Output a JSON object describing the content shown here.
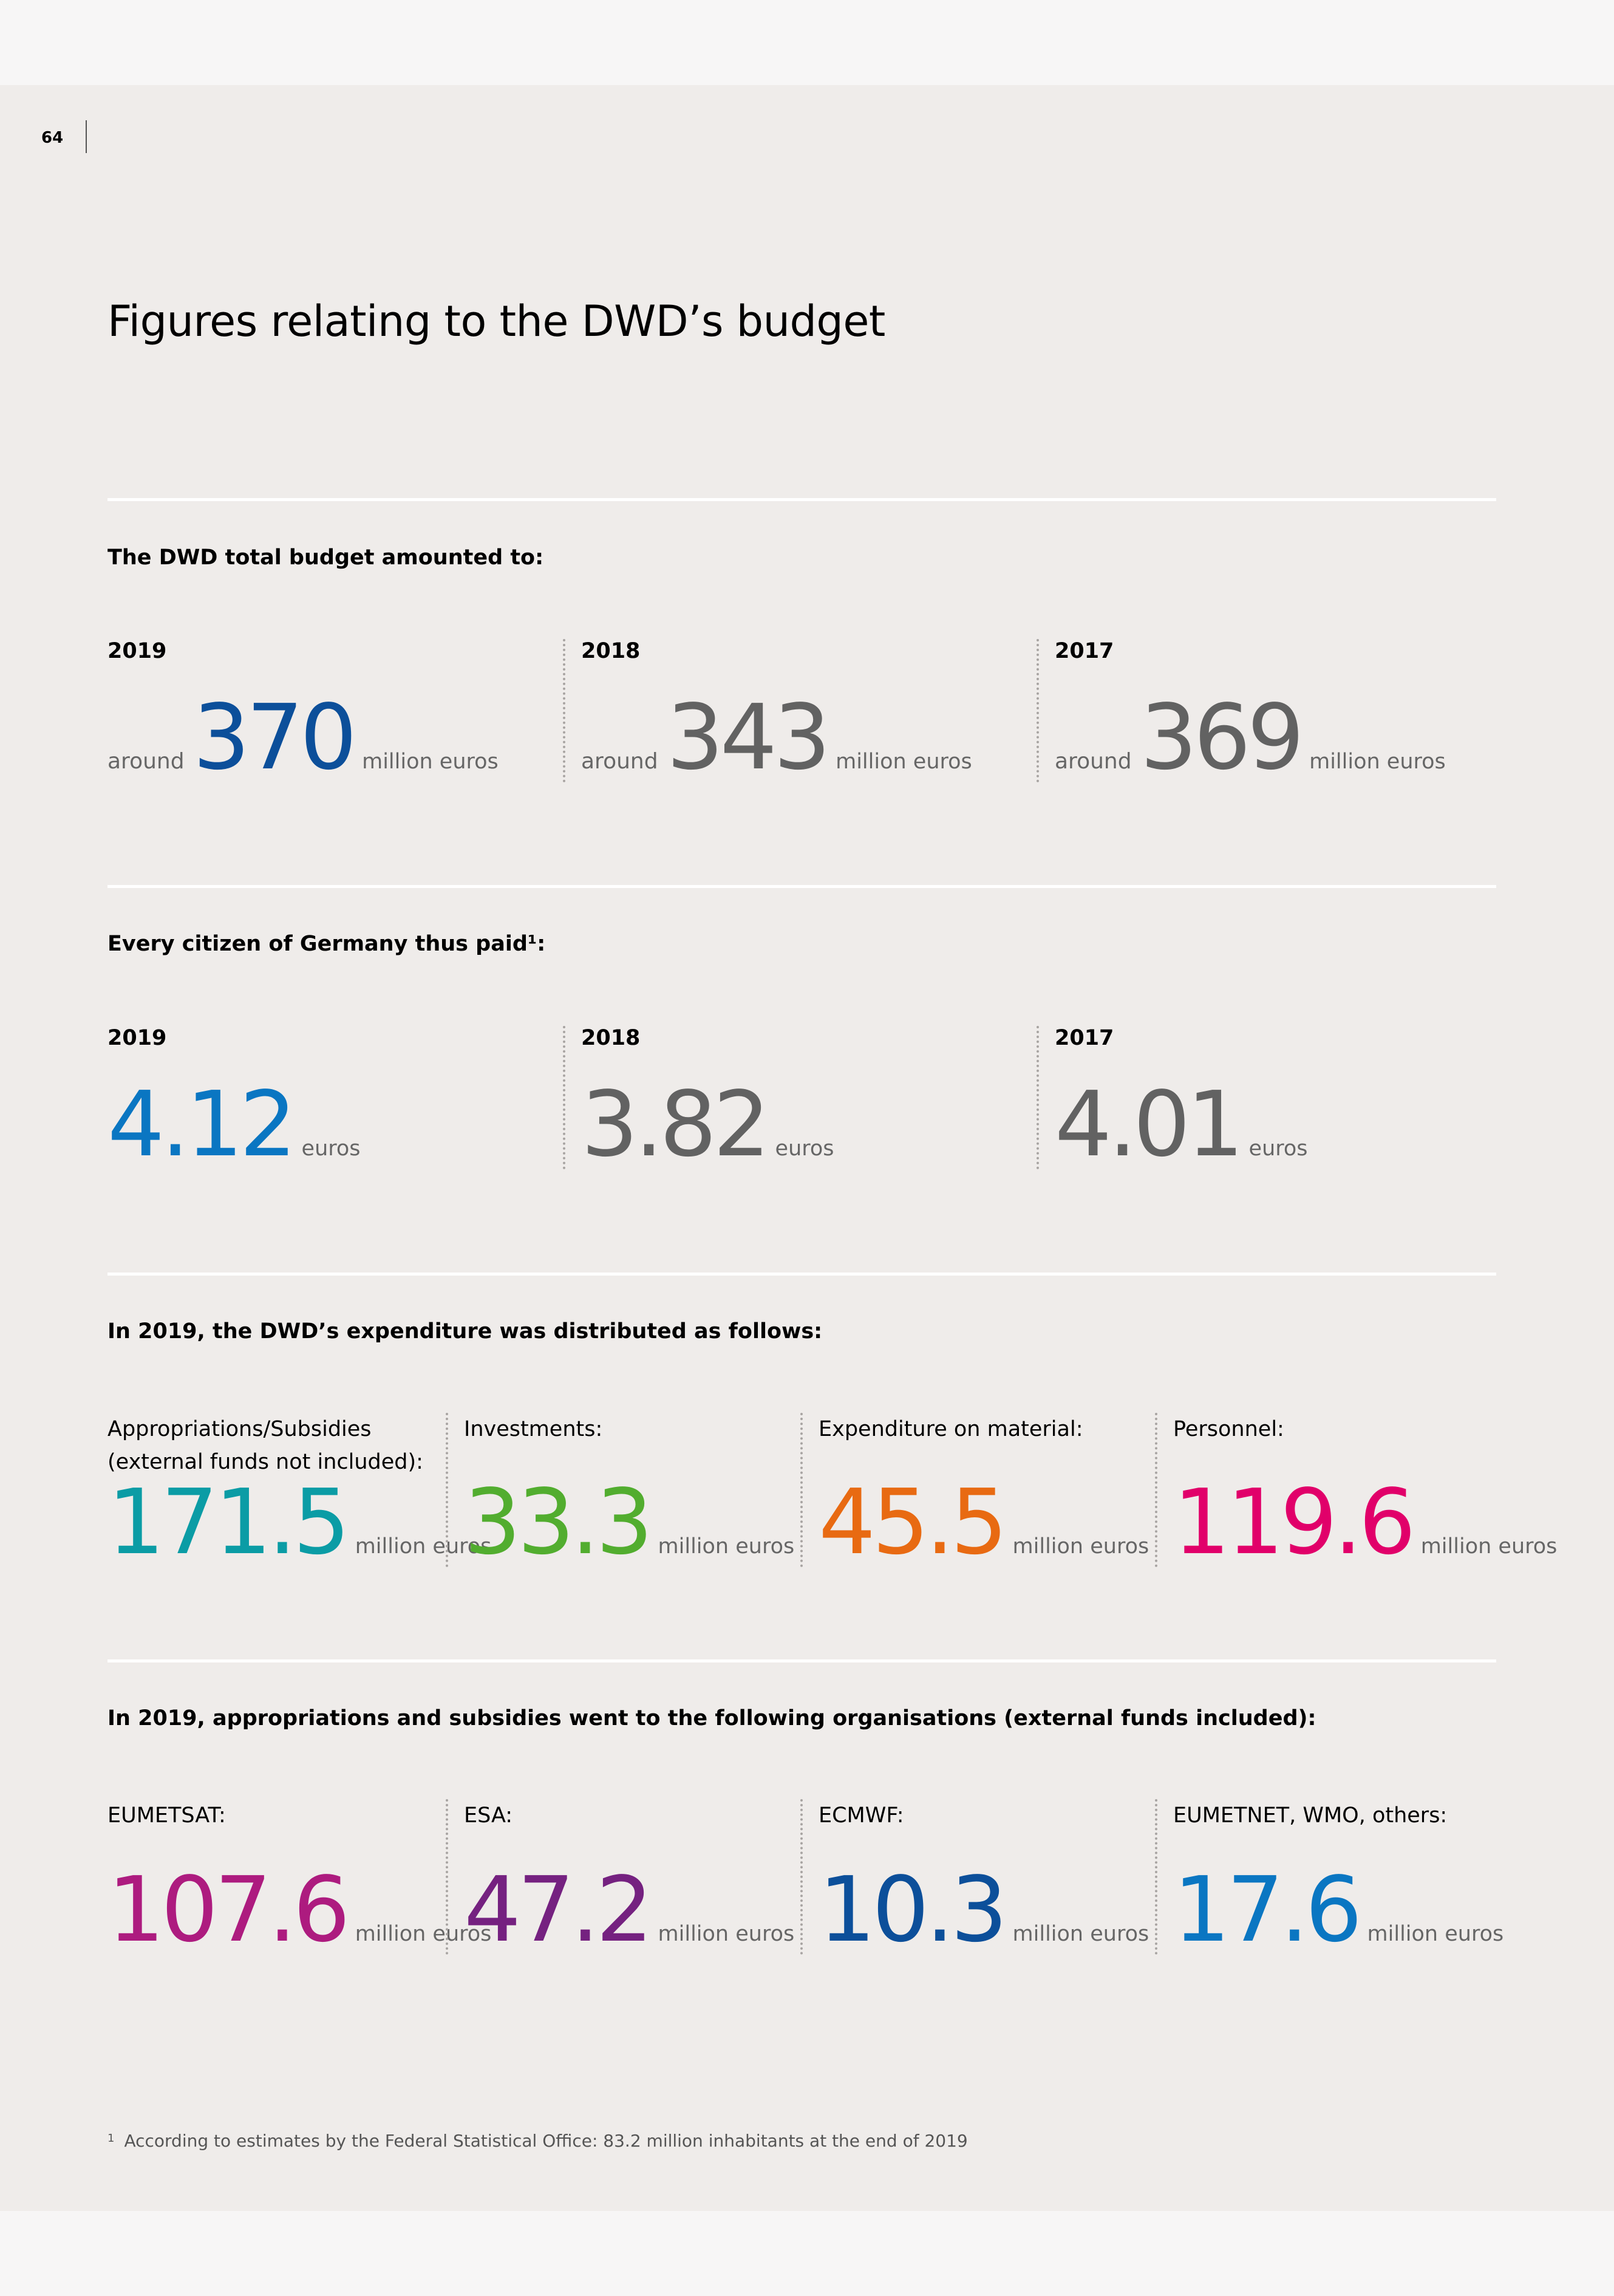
{
  "page_number": "64",
  "title": "Figures relating to the DWD’s budget",
  "colors": {
    "blue_dark": "#0c4f9a",
    "blue_light": "#0a76c2",
    "grey": "#626262",
    "teal": "#0b9ca5",
    "green": "#52ad2f",
    "orange": "#e86a12",
    "pink": "#e1006a",
    "magenta": "#ad1b7f",
    "purple": "#752180"
  },
  "total_budget": {
    "heading": "The DWD total budget amounted to:",
    "items": [
      {
        "year": "2019",
        "prefix": "around",
        "value": "370",
        "unit": "million euros",
        "color": "#0c4f9a"
      },
      {
        "year": "2018",
        "prefix": "around",
        "value": "343",
        "unit": "million euros",
        "color": "#626262"
      },
      {
        "year": "2017",
        "prefix": "around",
        "value": "369",
        "unit": "million euros",
        "color": "#626262"
      }
    ]
  },
  "per_citizen": {
    "heading": "Every citizen of Germany thus paid¹:",
    "items": [
      {
        "year": "2019",
        "value": "4.12",
        "unit": "euros",
        "color": "#0a76c2"
      },
      {
        "year": "2018",
        "value": "3.82",
        "unit": "euros",
        "color": "#626262"
      },
      {
        "year": "2017",
        "value": "4.01",
        "unit": "euros",
        "color": "#626262"
      }
    ]
  },
  "expenditure": {
    "heading": "In 2019, the DWD’s expenditure was distributed as follows:",
    "items": [
      {
        "label": "Appropriations/Subsidies\n(external funds not included):",
        "value": "171.5",
        "unit": "million euros",
        "color": "#0b9ca5"
      },
      {
        "label": "Investments:",
        "value": "33.3",
        "unit": "million euros",
        "color": "#52ad2f"
      },
      {
        "label": "Expenditure on material:",
        "value": "45.5",
        "unit": "million euros",
        "color": "#e86a12"
      },
      {
        "label": "Personnel:",
        "value": "119.6",
        "unit": "million euros",
        "color": "#e1006a"
      }
    ]
  },
  "organisations": {
    "heading": "In 2019, appropriations and subsidies went to the following organisations (external funds included):",
    "items": [
      {
        "label": "EUMETSAT:",
        "value": "107.6",
        "unit": "million euros",
        "color": "#ad1b7f"
      },
      {
        "label": "ESA:",
        "value": "47.2",
        "unit": "million euros",
        "color": "#752180"
      },
      {
        "label": "ECMWF:",
        "value": "10.3",
        "unit": "million euros",
        "color": "#0c4f9a"
      },
      {
        "label": "EUMETNET, WMO, others:",
        "value": "17.6",
        "unit": "million euros",
        "color": "#0a76c2"
      }
    ]
  },
  "footnote": {
    "marker": "1",
    "text": "According to estimates by the Federal Statistical Office: 83.2 million inhabitants at the end of 2019"
  }
}
